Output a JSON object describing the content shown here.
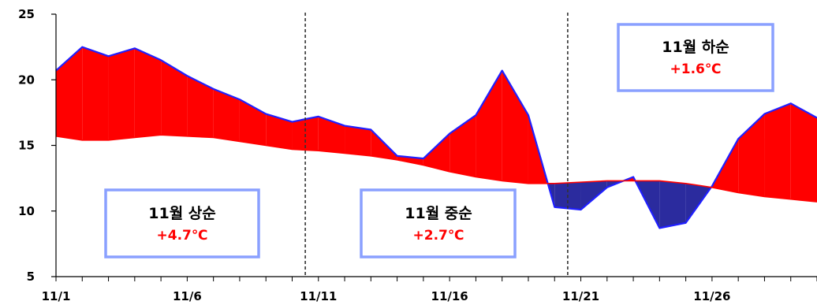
{
  "chart_data": {
    "type": "area",
    "title": "",
    "xlabel": "",
    "ylabel": "",
    "x": [
      "11/1",
      "11/2",
      "11/3",
      "11/4",
      "11/5",
      "11/6",
      "11/7",
      "11/8",
      "11/9",
      "11/10",
      "11/11",
      "11/12",
      "11/13",
      "11/14",
      "11/15",
      "11/16",
      "11/17",
      "11/18",
      "11/19",
      "11/20",
      "11/21",
      "11/22",
      "11/23",
      "11/24",
      "11/25",
      "11/26",
      "11/27",
      "11/28",
      "11/29",
      "11/30"
    ],
    "x_tick_labels": [
      "11/1",
      "11/6",
      "11/11",
      "11/16",
      "11/21",
      "11/26"
    ],
    "y_ticks": [
      5,
      10,
      15,
      20,
      25
    ],
    "ylim": [
      5,
      25
    ],
    "series": [
      {
        "values": [
          20.7,
          22.5,
          21.8,
          22.4,
          21.5,
          20.3,
          19.3,
          18.5,
          17.4,
          16.8,
          17.2,
          16.5,
          16.2,
          14.2,
          14.0,
          15.9,
          17.3,
          20.7,
          17.3,
          10.3,
          10.1,
          11.8,
          12.6,
          8.7,
          9.1,
          11.9,
          15.5,
          17.4,
          18.2,
          17.1
        ],
        "color": "#1f1fff"
      },
      {
        "values": [
          15.7,
          15.4,
          15.4,
          15.6,
          15.8,
          15.7,
          15.6,
          15.3,
          15.0,
          14.7,
          14.6,
          14.4,
          14.2,
          13.9,
          13.5,
          13.0,
          12.6,
          12.3,
          12.1,
          12.1,
          12.2,
          12.3,
          12.3,
          12.3,
          12.1,
          11.8,
          11.4,
          11.1,
          10.9,
          10.7
        ],
        "color": "#ff0000"
      }
    ],
    "above_fill": "#ff0000",
    "below_fill": "#2b2b9e",
    "dividers_after": [
      "11/10",
      "11/20"
    ],
    "annotations": [
      {
        "title": "11월 상순",
        "value": "+4.7℃"
      },
      {
        "title": "11월 중순",
        "value": "+2.7℃"
      },
      {
        "title": "11월 하순",
        "value": "+1.6℃"
      }
    ],
    "grid": false,
    "legend": "none"
  }
}
